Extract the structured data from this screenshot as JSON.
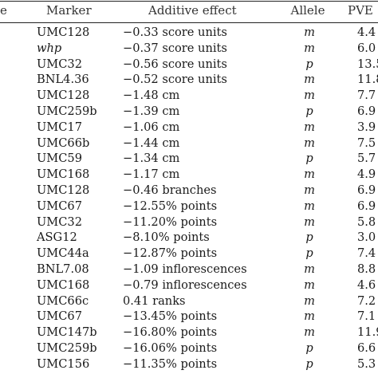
{
  "header": {
    "trait_fragment": "e",
    "marker": "Marker",
    "effect": "Additive effect",
    "allele": "Allele",
    "pve": "PVE"
  },
  "rows": [
    {
      "marker": "UMC128",
      "effect": "−0.33 score units",
      "allele": "m",
      "pve": "4.4"
    },
    {
      "marker": "whp",
      "effect": "−0.37 score units",
      "allele": "m",
      "pve": "6.0"
    },
    {
      "marker": "UMC32",
      "effect": "−0.56 score units",
      "allele": "p",
      "pve": "13.5"
    },
    {
      "marker": "BNL4.36",
      "effect": "−0.52 score units",
      "allele": "m",
      "pve": "11.8"
    },
    {
      "marker": "UMC128",
      "effect": "−1.48 cm",
      "allele": "m",
      "pve": "7.7"
    },
    {
      "marker": "UMC259b",
      "effect": "−1.39 cm",
      "allele": "p",
      "pve": "6.9"
    },
    {
      "marker": "UMC17",
      "effect": "−1.06 cm",
      "allele": "m",
      "pve": "3.9"
    },
    {
      "marker": "UMC66b",
      "effect": "−1.44 cm",
      "allele": "m",
      "pve": "7.5"
    },
    {
      "marker": "UMC59",
      "effect": "−1.34 cm",
      "allele": "p",
      "pve": "5.7"
    },
    {
      "marker": "UMC168",
      "effect": "−1.17 cm",
      "allele": "m",
      "pve": "4.9"
    },
    {
      "marker": "UMC128",
      "effect": "−0.46 branches",
      "allele": "m",
      "pve": "6.9"
    },
    {
      "marker": "UMC67",
      "effect": "−12.55% points",
      "allele": "m",
      "pve": "6.9"
    },
    {
      "marker": "UMC32",
      "effect": "−11.20% points",
      "allele": "m",
      "pve": "5.8"
    },
    {
      "marker": "ASG12",
      "effect": "−8.10% points",
      "allele": "p",
      "pve": "3.0"
    },
    {
      "marker": "UMC44a",
      "effect": "−12.87% points",
      "allele": "p",
      "pve": "7.4"
    },
    {
      "marker": "BNL7.08",
      "effect": "−1.09 inflorescences",
      "allele": "m",
      "pve": "8.8"
    },
    {
      "marker": "UMC168",
      "effect": "−0.79 inflorescences",
      "allele": "m",
      "pve": "4.6"
    },
    {
      "marker": "UMC66c",
      "effect": "0.41 ranks",
      "allele": "m",
      "pve": "7.2"
    },
    {
      "marker": "UMC67",
      "effect": "−13.45% points",
      "allele": "m",
      "pve": "7.1"
    },
    {
      "marker": "UMC147b",
      "effect": "−16.80% points",
      "allele": "m",
      "pve": "11.9"
    },
    {
      "marker": "UMC259b",
      "effect": "−16.06% points",
      "allele": "p",
      "pve": "6.6"
    },
    {
      "marker": "UMC156",
      "effect": "−11.35% points",
      "allele": "p",
      "pve": "5.3"
    }
  ]
}
